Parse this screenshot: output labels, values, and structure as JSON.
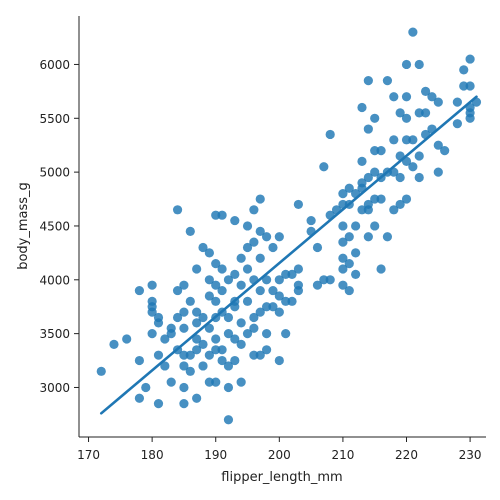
{
  "chart_data": {
    "type": "scatter",
    "xlabel": "flipper_length_mm",
    "ylabel": "body_mass_g",
    "xlim": [
      168.5,
      232.5
    ],
    "ylim": [
      2540,
      6450
    ],
    "x_ticks": [
      170,
      180,
      190,
      200,
      210,
      220,
      230
    ],
    "y_ticks": [
      3000,
      3500,
      4000,
      4500,
      5000,
      5500,
      6000
    ],
    "grid": false,
    "legend": "none",
    "point_color": "#1f77b4",
    "regression_line": {
      "x": [
        172,
        231
      ],
      "y": [
        2760,
        5700
      ],
      "color": "#1f77b4"
    },
    "series": [
      {
        "points": [
          [
            172,
            3150
          ],
          [
            174,
            3400
          ],
          [
            176,
            3450
          ],
          [
            178,
            3250
          ],
          [
            178,
            3900
          ],
          [
            178,
            2900
          ],
          [
            179,
            3000
          ],
          [
            180,
            3750
          ],
          [
            180,
            3950
          ],
          [
            180,
            3800
          ],
          [
            180,
            3500
          ],
          [
            180,
            3700
          ],
          [
            181,
            3300
          ],
          [
            181,
            2850
          ],
          [
            181,
            3600
          ],
          [
            181,
            3650
          ],
          [
            182,
            3200
          ],
          [
            182,
            3450
          ],
          [
            183,
            3550
          ],
          [
            183,
            3050
          ],
          [
            183,
            3500
          ],
          [
            184,
            3650
          ],
          [
            184,
            4650
          ],
          [
            184,
            3900
          ],
          [
            184,
            3350
          ],
          [
            185,
            3700
          ],
          [
            185,
            3300
          ],
          [
            185,
            3200
          ],
          [
            185,
            3000
          ],
          [
            185,
            2850
          ],
          [
            185,
            3950
          ],
          [
            185,
            3550
          ],
          [
            186,
            3800
          ],
          [
            186,
            4450
          ],
          [
            186,
            3300
          ],
          [
            186,
            3150
          ],
          [
            187,
            4100
          ],
          [
            187,
            3450
          ],
          [
            187,
            3700
          ],
          [
            187,
            3350
          ],
          [
            187,
            2900
          ],
          [
            187,
            3600
          ],
          [
            188,
            4300
          ],
          [
            188,
            3650
          ],
          [
            188,
            3400
          ],
          [
            188,
            3200
          ],
          [
            189,
            4000
          ],
          [
            189,
            3850
          ],
          [
            189,
            3550
          ],
          [
            189,
            3300
          ],
          [
            189,
            3050
          ],
          [
            189,
            4250
          ],
          [
            190,
            4600
          ],
          [
            190,
            4150
          ],
          [
            190,
            3950
          ],
          [
            190,
            3650
          ],
          [
            190,
            3450
          ],
          [
            190,
            3800
          ],
          [
            190,
            3350
          ],
          [
            190,
            3050
          ],
          [
            191,
            4600
          ],
          [
            191,
            4100
          ],
          [
            191,
            3700
          ],
          [
            191,
            3350
          ],
          [
            191,
            3250
          ],
          [
            191,
            3900
          ],
          [
            192,
            4000
          ],
          [
            192,
            3500
          ],
          [
            192,
            3200
          ],
          [
            192,
            3000
          ],
          [
            192,
            2700
          ],
          [
            192,
            3650
          ],
          [
            193,
            4550
          ],
          [
            193,
            4050
          ],
          [
            193,
            3800
          ],
          [
            193,
            3450
          ],
          [
            193,
            3250
          ],
          [
            193,
            3750
          ],
          [
            194,
            4200
          ],
          [
            194,
            3950
          ],
          [
            194,
            3600
          ],
          [
            194,
            3400
          ],
          [
            194,
            3050
          ],
          [
            195,
            4500
          ],
          [
            195,
            4300
          ],
          [
            195,
            3800
          ],
          [
            195,
            3500
          ],
          [
            195,
            4100
          ],
          [
            196,
            4650
          ],
          [
            196,
            4350
          ],
          [
            196,
            4000
          ],
          [
            196,
            3650
          ],
          [
            196,
            3300
          ],
          [
            196,
            3550
          ],
          [
            197,
            4750
          ],
          [
            197,
            4200
          ],
          [
            197,
            3900
          ],
          [
            197,
            3700
          ],
          [
            197,
            3300
          ],
          [
            197,
            4450
          ],
          [
            198,
            4400
          ],
          [
            198,
            4000
          ],
          [
            198,
            3750
          ],
          [
            198,
            3500
          ],
          [
            198,
            3350
          ],
          [
            199,
            4300
          ],
          [
            199,
            3900
          ],
          [
            199,
            3750
          ],
          [
            200,
            4400
          ],
          [
            200,
            4000
          ],
          [
            200,
            3700
          ],
          [
            200,
            3250
          ],
          [
            200,
            3850
          ],
          [
            201,
            4050
          ],
          [
            201,
            3800
          ],
          [
            201,
            3500
          ],
          [
            202,
            4050
          ],
          [
            202,
            3800
          ],
          [
            203,
            4700
          ],
          [
            203,
            4100
          ],
          [
            203,
            3950
          ],
          [
            203,
            3900
          ],
          [
            205,
            4550
          ],
          [
            205,
            4450
          ],
          [
            206,
            4300
          ],
          [
            206,
            3950
          ],
          [
            207,
            5050
          ],
          [
            207,
            4000
          ],
          [
            208,
            5350
          ],
          [
            208,
            4600
          ],
          [
            208,
            4000
          ],
          [
            209,
            4650
          ],
          [
            210,
            4800
          ],
          [
            210,
            4500
          ],
          [
            210,
            4350
          ],
          [
            210,
            4200
          ],
          [
            210,
            4100
          ],
          [
            210,
            3950
          ],
          [
            210,
            4700
          ],
          [
            211,
            4850
          ],
          [
            211,
            4700
          ],
          [
            211,
            4400
          ],
          [
            211,
            4150
          ],
          [
            211,
            3900
          ],
          [
            212,
            4800
          ],
          [
            212,
            4500
          ],
          [
            212,
            4250
          ],
          [
            212,
            4050
          ],
          [
            213,
            5600
          ],
          [
            213,
            5100
          ],
          [
            213,
            4850
          ],
          [
            213,
            4650
          ],
          [
            213,
            4900
          ],
          [
            214,
            5850
          ],
          [
            214,
            5400
          ],
          [
            214,
            4950
          ],
          [
            214,
            4700
          ],
          [
            214,
            4400
          ],
          [
            214,
            4650
          ],
          [
            215,
            5500
          ],
          [
            215,
            5200
          ],
          [
            215,
            5000
          ],
          [
            215,
            4750
          ],
          [
            215,
            4500
          ],
          [
            216,
            5200
          ],
          [
            216,
            4950
          ],
          [
            216,
            4750
          ],
          [
            216,
            4100
          ],
          [
            217,
            5850
          ],
          [
            217,
            5000
          ],
          [
            217,
            4400
          ],
          [
            218,
            5700
          ],
          [
            218,
            5300
          ],
          [
            218,
            5000
          ],
          [
            218,
            4650
          ],
          [
            219,
            5550
          ],
          [
            219,
            5150
          ],
          [
            219,
            4950
          ],
          [
            219,
            4700
          ],
          [
            220,
            6000
          ],
          [
            220,
            5700
          ],
          [
            220,
            5500
          ],
          [
            220,
            5300
          ],
          [
            220,
            5100
          ],
          [
            220,
            4750
          ],
          [
            221,
            6300
          ],
          [
            221,
            5300
          ],
          [
            221,
            5050
          ],
          [
            222,
            6000
          ],
          [
            222,
            5550
          ],
          [
            222,
            5150
          ],
          [
            222,
            4950
          ],
          [
            223,
            5750
          ],
          [
            223,
            5550
          ],
          [
            223,
            5350
          ],
          [
            224,
            5700
          ],
          [
            224,
            5400
          ],
          [
            225,
            5650
          ],
          [
            225,
            5250
          ],
          [
            225,
            5000
          ],
          [
            226,
            5200
          ],
          [
            228,
            5650
          ],
          [
            228,
            5450
          ],
          [
            229,
            5950
          ],
          [
            229,
            5800
          ],
          [
            230,
            6050
          ],
          [
            230,
            5800
          ],
          [
            230,
            5600
          ],
          [
            230,
            5550
          ],
          [
            230,
            5500
          ],
          [
            231,
            5650
          ]
        ]
      }
    ]
  }
}
